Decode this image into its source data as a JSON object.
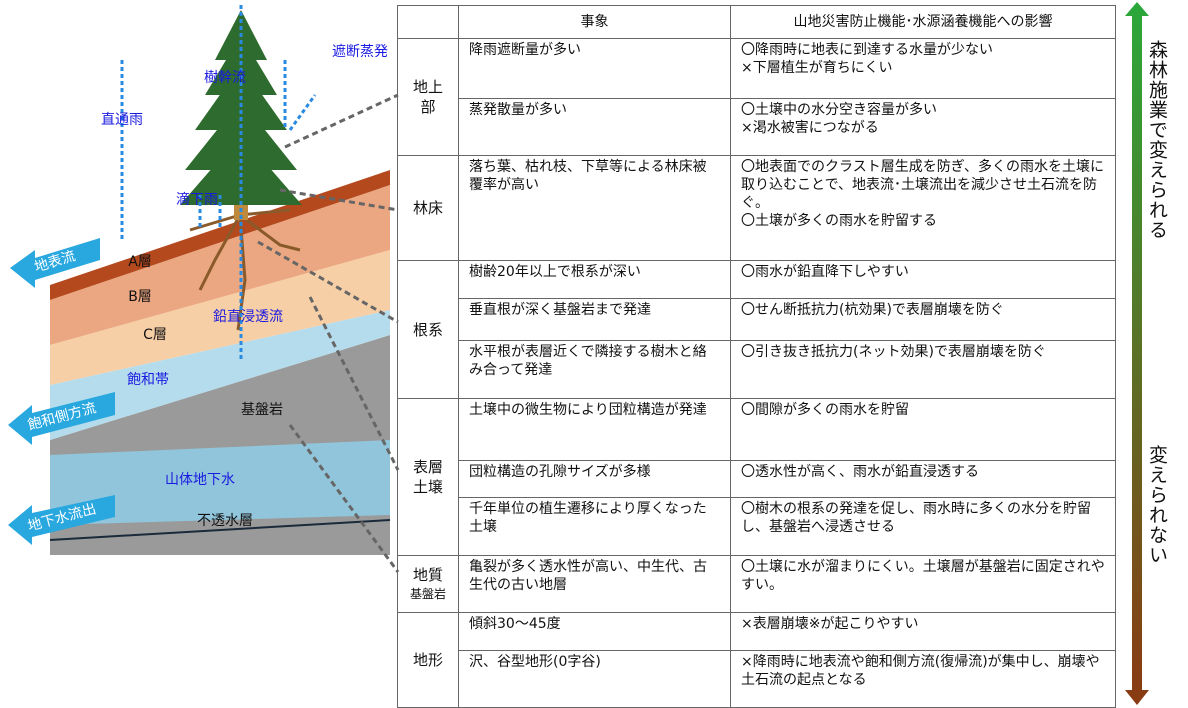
{
  "diagram": {
    "labels": {
      "evaporation": "遮断蒸発",
      "stemflow": "樹幹流",
      "throughfall": "直通雨",
      "drip": "滴下雨",
      "surface_flow": "地表流",
      "layer_a": "A層",
      "layer_b": "B層",
      "layer_c": "C層",
      "vertical_flow": "鉛直浸透流",
      "saturated": "飽和帯",
      "lateral_flow": "飽和側方流",
      "bedrock": "基盤岩",
      "groundwater": "山体地下水",
      "groundwater_out": "地下水流出",
      "impermeable": "不透水層"
    }
  },
  "table": {
    "header": [
      "",
      "事象",
      "山地災害防止機能･水源涵養機能への影響"
    ],
    "groups": [
      {
        "label": "地上部",
        "sublabel": null,
        "rows": [
          [
            "降雨遮断量が多い",
            "〇降雨時に地表に到達する水量が少ない\n×下層植生が育ちにくい"
          ],
          [
            "蒸発散量が多い",
            "〇土壌中の水分空き容量が多い\n×渇水被害につながる"
          ]
        ]
      },
      {
        "label": "林床",
        "sublabel": null,
        "rows": [
          [
            "落ち葉、枯れ枝、下草等による林床被覆率が高い",
            "〇地表面でのクラスト層生成を防ぎ、多くの雨水を土壌に取り込むことで、地表流･土壌流出を減少させ土石流を防ぐ。\n〇土壌が多くの雨水を貯留する"
          ]
        ]
      },
      {
        "label": "根系",
        "sublabel": null,
        "rows": [
          [
            "樹齢20年以上で根系が深い",
            "〇雨水が鉛直降下しやすい"
          ],
          [
            "垂直根が深く基盤岩まで発達",
            "〇せん断抵抗力(杭効果)で表層崩壊を防ぐ"
          ],
          [
            "水平根が表層近くで隣接する樹木と絡み合って発達",
            "〇引き抜き抵抗力(ネット効果)で表層崩壊を防ぐ"
          ]
        ]
      },
      {
        "label": "表層土壌",
        "sublabel": null,
        "rows": [
          [
            "土壌中の微生物により団粒構造が発達",
            "〇間隙が多くの雨水を貯留"
          ],
          [
            "団粒構造の孔隙サイズが多様",
            "〇透水性が高く、雨水が鉛直浸透する"
          ],
          [
            "千年単位の植生遷移により厚くなった土壌",
            "〇樹木の根系の発達を促し、雨水時に多くの水分を貯留し、基盤岩へ浸透させる"
          ]
        ]
      },
      {
        "label": "地質",
        "sublabel": "基盤岩",
        "rows": [
          [
            "亀裂が多く透水性が高い、中生代、古生代の古い地層",
            "〇土壌に水が溜まりにくい。土壌層が基盤岩に固定されやすい。"
          ]
        ]
      },
      {
        "label": "地形",
        "sublabel": null,
        "rows": [
          [
            "傾斜30～45度",
            "×表層崩壊※が起こりやすい"
          ],
          [
            "沢、谷型地形(0字谷)",
            "×降雨時に地表流や飽和側方流(復帰流)が集中し、崩壊や土石流の起点となる"
          ]
        ]
      }
    ]
  },
  "scale": {
    "top": "森林施業で変えられる",
    "bottom": "変えられない"
  }
}
